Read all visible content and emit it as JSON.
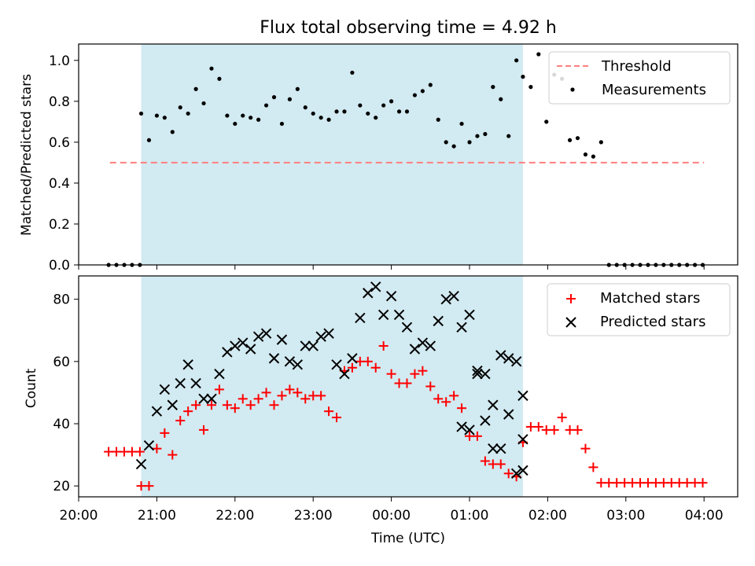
{
  "title": "Flux total observing time = 4.92 h",
  "colors": {
    "shade": "#add8e6",
    "threshold": "#ff7f7f",
    "measurement": "#000000",
    "matched": "#ff0000",
    "predicted": "#000000"
  },
  "chart_data": [
    {
      "type": "scatter",
      "ylabel": "Matched/Predicted stars",
      "xlabel": "",
      "ylim": [
        0,
        1.08
      ],
      "yticks": [
        "0.0",
        "0.2",
        "0.4",
        "0.6",
        "0.8",
        "1.0"
      ],
      "legend": {
        "placement": "top-right",
        "entries": [
          "Threshold",
          "Measurements"
        ]
      },
      "shaded_span": [
        "20:48",
        "01:41"
      ],
      "threshold": {
        "name": "Threshold",
        "value": 0.5,
        "x_range": [
          "20:24",
          "04:00"
        ]
      },
      "series": [
        {
          "name": "Measurements",
          "x": [
            "20:23",
            "20:29",
            "20:35",
            "20:41",
            "20:47",
            "20:48",
            "20:54",
            "21:00",
            "21:06",
            "21:12",
            "21:18",
            "21:24",
            "21:30",
            "21:36",
            "21:42",
            "21:48",
            "21:54",
            "22:00",
            "22:06",
            "22:12",
            "22:18",
            "22:24",
            "22:30",
            "22:36",
            "22:42",
            "22:48",
            "22:54",
            "23:00",
            "23:06",
            "23:12",
            "23:18",
            "23:24",
            "23:30",
            "23:36",
            "23:42",
            "23:48",
            "23:54",
            "00:00",
            "00:06",
            "00:12",
            "00:18",
            "00:24",
            "00:30",
            "00:36",
            "00:42",
            "00:48",
            "00:54",
            "01:00",
            "01:06",
            "01:12",
            "01:18",
            "01:24",
            "01:30",
            "01:36",
            "01:41",
            "01:47",
            "01:53",
            "01:59",
            "02:05",
            "02:11",
            "02:17",
            "02:23",
            "02:29",
            "02:35",
            "02:41",
            "02:47",
            "02:53",
            "02:59",
            "03:05",
            "03:11",
            "03:17",
            "03:23",
            "03:29",
            "03:35",
            "03:41",
            "03:47",
            "03:53",
            "03:59"
          ],
          "y": [
            0.0,
            0.0,
            0.0,
            0.0,
            0.0,
            0.74,
            0.61,
            0.73,
            0.72,
            0.65,
            0.77,
            0.74,
            0.86,
            0.79,
            0.96,
            0.91,
            0.73,
            0.69,
            0.73,
            0.72,
            0.71,
            0.78,
            0.82,
            0.69,
            0.81,
            0.86,
            0.77,
            0.74,
            0.72,
            0.71,
            0.75,
            0.75,
            0.94,
            0.78,
            0.74,
            0.72,
            0.78,
            0.8,
            0.75,
            0.75,
            0.83,
            0.85,
            0.88,
            0.71,
            0.6,
            0.58,
            0.69,
            0.6,
            0.63,
            0.64,
            0.87,
            0.81,
            0.63,
            1.0,
            0.92,
            0.87,
            1.03,
            0.7,
            0.93,
            0.91,
            0.61,
            0.62,
            0.54,
            0.53,
            0.6,
            0.0,
            0.0,
            0.0,
            0.0,
            0.0,
            0.0,
            0.0,
            0.0,
            0.0,
            0.0,
            0.0,
            0.0,
            0.0
          ]
        }
      ]
    },
    {
      "type": "scatter",
      "ylabel": "Count",
      "xlabel": "Time (UTC)",
      "ylim": [
        16.5,
        87.5
      ],
      "yticks": [
        "20",
        "40",
        "60",
        "80"
      ],
      "xticks": [
        "20:00",
        "21:00",
        "22:00",
        "23:00",
        "00:00",
        "01:00",
        "02:00",
        "03:00",
        "04:00"
      ],
      "legend": {
        "placement": "top-right",
        "entries": [
          "Matched stars",
          "Predicted stars"
        ]
      },
      "shaded_span": [
        "20:48",
        "01:41"
      ],
      "series": [
        {
          "name": "Matched stars",
          "x": [
            "20:23",
            "20:29",
            "20:35",
            "20:41",
            "20:47",
            "20:48",
            "20:54",
            "21:00",
            "21:06",
            "21:12",
            "21:18",
            "21:24",
            "21:30",
            "21:36",
            "21:42",
            "21:48",
            "21:54",
            "22:00",
            "22:06",
            "22:12",
            "22:18",
            "22:24",
            "22:30",
            "22:36",
            "22:42",
            "22:48",
            "22:54",
            "23:00",
            "23:06",
            "23:12",
            "23:18",
            "23:24",
            "23:30",
            "23:36",
            "23:42",
            "23:48",
            "23:54",
            "00:00",
            "00:06",
            "00:12",
            "00:18",
            "00:24",
            "00:30",
            "00:36",
            "00:42",
            "00:48",
            "00:54",
            "01:00",
            "01:06",
            "01:12",
            "01:18",
            "01:24",
            "01:30",
            "01:36",
            "01:41",
            "01:47",
            "01:53",
            "01:59",
            "02:05",
            "02:11",
            "02:17",
            "02:23",
            "02:29",
            "02:35",
            "02:41",
            "02:47",
            "02:53",
            "02:59",
            "03:05",
            "03:11",
            "03:17",
            "03:23",
            "03:29",
            "03:35",
            "03:41",
            "03:47",
            "03:53",
            "03:59"
          ],
          "y": [
            31,
            31,
            31,
            31,
            31,
            20,
            20,
            32,
            37,
            30,
            41,
            44,
            46,
            38,
            46,
            51,
            46,
            45,
            48,
            46,
            48,
            50,
            46,
            49,
            51,
            50,
            48,
            49,
            49,
            44,
            42,
            57,
            58,
            60,
            60,
            58,
            65,
            56,
            53,
            53,
            56,
            57,
            52,
            48,
            47,
            49,
            45,
            36,
            36,
            28,
            27,
            27,
            24,
            23,
            34,
            39,
            39,
            38,
            38,
            42,
            38,
            38,
            32,
            26,
            21,
            21,
            21,
            21,
            21,
            21,
            21,
            21,
            21,
            21,
            21,
            21,
            21,
            21
          ]
        },
        {
          "name": "Predicted stars",
          "x": [
            "20:48",
            "20:54",
            "21:00",
            "21:06",
            "21:12",
            "21:18",
            "21:24",
            "21:30",
            "21:36",
            "21:42",
            "21:48",
            "21:54",
            "22:00",
            "22:06",
            "22:12",
            "22:18",
            "22:24",
            "22:30",
            "22:36",
            "22:42",
            "22:48",
            "22:54",
            "23:00",
            "23:06",
            "23:12",
            "23:18",
            "23:24",
            "23:30",
            "23:36",
            "23:42",
            "23:48",
            "23:54",
            "00:00",
            "00:06",
            "00:12",
            "00:18",
            "00:24",
            "00:30",
            "00:36",
            "00:42",
            "00:48",
            "00:54",
            "01:00",
            "01:06",
            "01:12",
            "01:18",
            "01:24",
            "01:30",
            "01:36",
            "01:41"
          ],
          "y": [
            27,
            33,
            44,
            51,
            46,
            53,
            59,
            53,
            48,
            48,
            56,
            63,
            65,
            66,
            64,
            68,
            69,
            61,
            67,
            60,
            59,
            65,
            65,
            68,
            69,
            59,
            56,
            61,
            74,
            82,
            84,
            75,
            81,
            75,
            71,
            64,
            66,
            65,
            73,
            80,
            81,
            71,
            75,
            57,
            56,
            32,
            32,
            43,
            24,
            25
          ]
        }
      ],
      "extra_predicted": {
        "x": [
          "00:54",
          "01:00",
          "01:06",
          "01:12",
          "01:18",
          "01:24",
          "01:30",
          "01:36",
          "01:41"
        ],
        "y": [
          39,
          38,
          56,
          41,
          46,
          62,
          61,
          60,
          49
        ]
      },
      "extra_predicted_last": {
        "x": "01:41",
        "y": 35
      }
    }
  ]
}
